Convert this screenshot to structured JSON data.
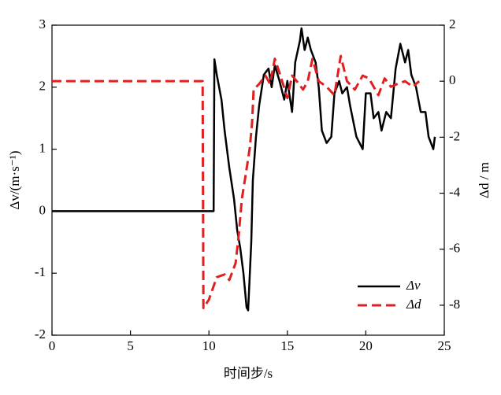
{
  "chart_data": {
    "type": "line",
    "xlabel": "时间步/s",
    "ylabel": "Δv/(m·s⁻¹)",
    "y2label": "Δd / m",
    "xlim": [
      0,
      25
    ],
    "xticks": [
      0,
      5,
      10,
      15,
      20,
      25
    ],
    "ylim": [
      -2,
      3
    ],
    "yticks": [
      -2,
      -1,
      0,
      1,
      2,
      3
    ],
    "y2lim": [
      -9.07,
      2
    ],
    "y2ticks": [
      2,
      0,
      -2,
      -4,
      -6,
      -8
    ],
    "legend": "lower right",
    "series": [
      {
        "name": "Δv",
        "color": "#000000",
        "line_style": "solid",
        "x": [
          0,
          10.3,
          10.35,
          10.5,
          10.8,
          11.0,
          11.3,
          11.6,
          11.8,
          12.0,
          12.2,
          12.4,
          12.5,
          12.7,
          12.8,
          13.0,
          13.2,
          13.5,
          13.8,
          14.0,
          14.2,
          14.5,
          14.8,
          15.0,
          15.3,
          15.5,
          15.8,
          15.9,
          16.1,
          16.3,
          16.5,
          16.8,
          17.0,
          17.2,
          17.5,
          17.8,
          18.0,
          18.3,
          18.5,
          18.8,
          19.0,
          19.4,
          19.8,
          20.0,
          20.3,
          20.5,
          20.8,
          21.0,
          21.3,
          21.6,
          21.9,
          22.2,
          22.5,
          22.7,
          22.9,
          23.2,
          23.5,
          23.8,
          24.0,
          24.3,
          24.4
        ],
        "values": [
          0,
          0,
          2.45,
          2.2,
          1.8,
          1.3,
          0.7,
          0.2,
          -0.3,
          -0.6,
          -1.0,
          -1.55,
          -1.6,
          -0.5,
          0.5,
          1.2,
          1.7,
          2.2,
          2.3,
          2.0,
          2.35,
          2.1,
          1.8,
          2.1,
          1.6,
          2.4,
          2.75,
          2.95,
          2.6,
          2.8,
          2.6,
          2.4,
          2.0,
          1.3,
          1.1,
          1.2,
          1.9,
          2.1,
          1.9,
          2.0,
          1.7,
          1.2,
          1.0,
          1.9,
          1.9,
          1.5,
          1.6,
          1.3,
          1.6,
          1.5,
          2.3,
          2.7,
          2.4,
          2.6,
          2.2,
          2.0,
          1.6,
          1.6,
          1.2,
          1.0,
          1.2
        ]
      },
      {
        "name": "Δd",
        "color": "#e02020",
        "line_style": "dashed",
        "axis": "y2",
        "x": [
          0,
          9.6,
          9.65,
          10.0,
          10.5,
          11.0,
          11.3,
          11.7,
          11.9,
          12.1,
          12.3,
          12.6,
          12.75,
          12.85,
          13.2,
          13.6,
          13.9,
          14.2,
          14.5,
          15.0,
          15.3,
          15.6,
          16.0,
          16.3,
          16.6,
          17.0,
          17.5,
          18.0,
          18.4,
          18.8,
          19.3,
          19.8,
          20.2,
          20.8,
          21.2,
          21.6,
          22.0,
          22.5,
          23.0,
          23.4
        ],
        "values": [
          0,
          0,
          -8.1,
          -7.8,
          -7.0,
          -6.9,
          -7.1,
          -6.5,
          -5.5,
          -4.2,
          -3.5,
          -2.4,
          -1.5,
          -0.3,
          -0.1,
          0.2,
          -0.1,
          0.8,
          0.3,
          -0.6,
          0.2,
          0.0,
          -0.3,
          0.0,
          0.8,
          0.0,
          -0.2,
          -0.5,
          0.9,
          0.0,
          -0.3,
          0.2,
          0.1,
          -0.5,
          0.1,
          -0.2,
          -0.1,
          0.0,
          -0.2,
          0.0
        ]
      }
    ]
  }
}
